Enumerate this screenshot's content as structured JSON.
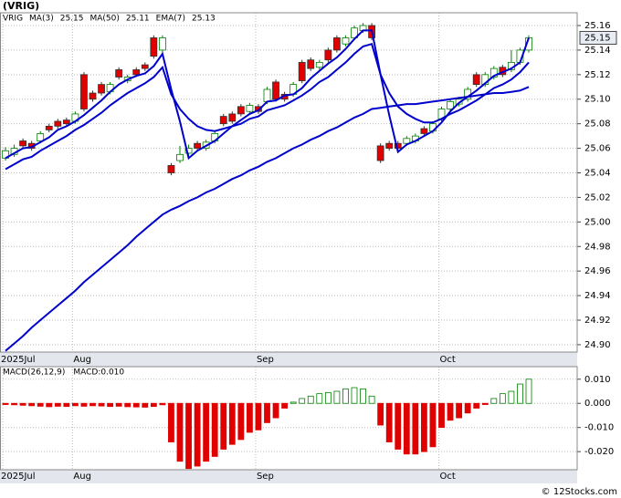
{
  "title": "(VRIG)",
  "ticker": "VRIG",
  "footer": "© 12Stocks.com",
  "chart_data": [
    {
      "type": "candlestick",
      "categories": [
        "2025Jul",
        null,
        null,
        null,
        null,
        null,
        null,
        null,
        "Aug",
        null,
        null,
        null,
        null,
        null,
        null,
        null,
        null,
        null,
        null,
        null,
        null,
        null,
        null,
        null,
        null,
        null,
        null,
        null,
        null,
        "Sep",
        null,
        null,
        null,
        null,
        null,
        null,
        null,
        null,
        null,
        null,
        null,
        null,
        null,
        null,
        null,
        null,
        null,
        null,
        null,
        null,
        "Oct",
        null,
        null,
        null,
        null,
        null,
        null,
        null,
        null,
        null,
        null
      ],
      "open": [
        25.052,
        25.055,
        25.066,
        25.064,
        25.066,
        25.078,
        25.082,
        25.083,
        25.082,
        25.12,
        25.105,
        25.112,
        25.106,
        25.124,
        25.115,
        25.124,
        25.128,
        25.15,
        25.14,
        25.046,
        25.05,
        25.056,
        25.064,
        25.06,
        25.066,
        25.086,
        25.088,
        25.094,
        25.09,
        25.094,
        25.098,
        25.114,
        25.104,
        25.104,
        25.13,
        25.132,
        25.126,
        25.14,
        25.15,
        25.145,
        25.15,
        25.156,
        25.16,
        25.062,
        25.064,
        25.064,
        25.064,
        25.066,
        25.076,
        25.074,
        25.084,
        25.092,
        25.096,
        25.1,
        25.12,
        25.112,
        25.118,
        25.126,
        25.124,
        25.13,
        25.14
      ],
      "high": [
        25.061,
        25.063,
        25.068,
        25.066,
        25.074,
        25.08,
        25.084,
        25.085,
        25.09,
        25.122,
        25.107,
        25.114,
        25.114,
        25.126,
        25.12,
        25.126,
        25.13,
        25.152,
        25.152,
        25.048,
        25.062,
        25.063,
        25.066,
        25.067,
        25.074,
        25.088,
        25.09,
        25.096,
        25.097,
        25.096,
        25.11,
        25.116,
        25.106,
        25.114,
        25.132,
        25.134,
        25.132,
        25.142,
        25.152,
        25.152,
        25.16,
        25.162,
        25.162,
        25.064,
        25.066,
        25.066,
        25.07,
        25.072,
        25.078,
        25.082,
        25.094,
        25.1,
        25.102,
        25.11,
        25.122,
        25.122,
        25.127,
        25.128,
        25.14,
        25.142,
        25.152
      ],
      "low": [
        25.05,
        25.053,
        25.06,
        25.058,
        25.064,
        25.073,
        25.076,
        25.078,
        25.08,
        25.09,
        25.098,
        25.103,
        25.104,
        25.116,
        25.113,
        25.118,
        25.123,
        25.133,
        25.138,
        25.038,
        25.048,
        25.054,
        25.058,
        25.058,
        25.064,
        25.078,
        25.08,
        25.086,
        25.088,
        25.088,
        25.096,
        25.098,
        25.098,
        25.102,
        25.113,
        25.123,
        25.124,
        25.13,
        25.138,
        25.143,
        25.148,
        25.154,
        25.148,
        25.048,
        25.058,
        25.058,
        25.062,
        25.064,
        25.07,
        25.072,
        25.082,
        25.09,
        25.094,
        25.098,
        25.11,
        25.11,
        25.116,
        25.118,
        25.122,
        25.128,
        25.138
      ],
      "close": [
        25.058,
        25.06,
        25.062,
        25.06,
        25.072,
        25.075,
        25.078,
        25.08,
        25.088,
        25.092,
        25.1,
        25.105,
        25.112,
        25.118,
        25.118,
        25.12,
        25.125,
        25.135,
        25.15,
        25.04,
        25.055,
        25.06,
        25.06,
        25.065,
        25.072,
        25.08,
        25.082,
        25.088,
        25.095,
        25.09,
        25.108,
        25.1,
        25.1,
        25.112,
        25.115,
        25.125,
        25.13,
        25.132,
        25.14,
        25.15,
        25.158,
        25.16,
        25.15,
        25.05,
        25.06,
        25.06,
        25.068,
        25.07,
        25.072,
        25.08,
        25.092,
        25.098,
        25.1,
        25.108,
        25.112,
        25.12,
        25.125,
        25.12,
        25.13,
        25.14,
        25.15
      ],
      "up_color": "#008000",
      "down_color": "#e00000",
      "series": [
        {
          "name": "MA(3)",
          "color": "#0000cc",
          "values": [
            25.052,
            25.056,
            25.06,
            25.061,
            25.065,
            25.069,
            25.075,
            25.078,
            25.082,
            25.087,
            25.093,
            25.099,
            25.106,
            25.112,
            25.116,
            25.119,
            25.121,
            25.127,
            25.137,
            25.108,
            25.082,
            25.052,
            25.058,
            25.062,
            25.066,
            25.072,
            25.078,
            25.083,
            25.088,
            25.091,
            25.098,
            25.099,
            25.103,
            25.104,
            25.109,
            25.117,
            25.123,
            25.129,
            25.134,
            25.141,
            25.149,
            25.156,
            25.156,
            25.12,
            25.087,
            25.057,
            25.063,
            25.066,
            25.07,
            25.074,
            25.081,
            25.09,
            25.097,
            25.102,
            25.107,
            25.113,
            25.119,
            25.122,
            25.125,
            25.13,
            25.15
          ]
        },
        {
          "name": "MA(50)",
          "color": "#0000cc",
          "values": [
            24.895,
            24.901,
            24.907,
            24.914,
            24.92,
            24.926,
            24.932,
            24.938,
            24.944,
            24.951,
            24.957,
            24.963,
            24.969,
            24.975,
            24.981,
            24.988,
            24.994,
            25.0,
            25.006,
            25.01,
            25.013,
            25.017,
            25.02,
            25.024,
            25.027,
            25.031,
            25.035,
            25.038,
            25.042,
            25.045,
            25.049,
            25.052,
            25.056,
            25.06,
            25.063,
            25.067,
            25.07,
            25.074,
            25.077,
            25.081,
            25.085,
            25.088,
            25.092,
            25.093,
            25.094,
            25.095,
            25.096,
            25.096,
            25.097,
            25.098,
            25.099,
            25.1,
            25.101,
            25.102,
            25.103,
            25.104,
            25.105,
            25.105,
            25.106,
            25.107,
            25.11
          ]
        },
        {
          "name": "EMA(7)",
          "color": "#0000cc",
          "values": [
            25.043,
            25.047,
            25.051,
            25.053,
            25.058,
            25.062,
            25.066,
            25.07,
            25.075,
            25.079,
            25.084,
            25.089,
            25.095,
            25.1,
            25.105,
            25.109,
            25.113,
            25.118,
            25.126,
            25.104,
            25.092,
            25.084,
            25.078,
            25.075,
            25.074,
            25.076,
            25.078,
            25.08,
            25.084,
            25.086,
            25.091,
            25.093,
            25.095,
            25.099,
            25.103,
            25.108,
            25.114,
            25.118,
            25.124,
            25.13,
            25.137,
            25.143,
            25.145,
            25.12,
            25.105,
            25.094,
            25.088,
            25.084,
            25.081,
            25.081,
            25.084,
            25.088,
            25.091,
            25.095,
            25.099,
            25.104,
            25.109,
            25.112,
            25.116,
            25.122,
            25.13
          ]
        }
      ],
      "ylim": [
        24.894,
        25.1704
      ],
      "yticks": [
        {
          "value": 24.9,
          "label": "24.90"
        },
        24.92,
        24.94,
        24.96,
        24.98,
        {
          "value": 25.0,
          "label": "25.00"
        },
        25.02,
        25.04,
        25.06,
        25.08,
        {
          "value": 25.1,
          "label": "25.10"
        },
        25.12,
        25.14,
        25.16
      ],
      "grid": true
    },
    {
      "type": "histogram-bar",
      "label": "MACD(26,12,9)",
      "value_label": "MACD:0.010",
      "categories": [
        "2025Jul",
        null,
        null,
        null,
        null,
        null,
        null,
        null,
        "Aug",
        null,
        null,
        null,
        null,
        null,
        null,
        null,
        null,
        null,
        null,
        null,
        null,
        null,
        null,
        null,
        null,
        null,
        null,
        null,
        null,
        "Sep",
        null,
        null,
        null,
        null,
        null,
        null,
        null,
        null,
        null,
        null,
        null,
        null,
        null,
        null,
        null,
        null,
        null,
        null,
        null,
        null,
        "Oct",
        null,
        null,
        null,
        null,
        null,
        null,
        null,
        null,
        null,
        null
      ],
      "values": [
        -0.0005,
        -0.0006,
        -0.0008,
        -0.001,
        -0.0012,
        -0.0014,
        -0.0012,
        -0.0013,
        -0.001,
        -0.0012,
        -0.001,
        -0.0011,
        -0.0013,
        -0.0012,
        -0.0014,
        -0.0015,
        -0.0016,
        -0.0013,
        -0.0006,
        -0.016,
        -0.024,
        -0.027,
        -0.026,
        -0.024,
        -0.022,
        -0.019,
        -0.017,
        -0.015,
        -0.012,
        -0.011,
        -0.008,
        -0.006,
        -0.002,
        0.0005,
        0.002,
        0.003,
        0.004,
        0.0045,
        0.005,
        0.006,
        0.0065,
        0.006,
        0.003,
        -0.009,
        -0.016,
        -0.019,
        -0.021,
        -0.021,
        -0.02,
        -0.018,
        -0.01,
        -0.007,
        -0.006,
        -0.004,
        -0.002,
        -0.0005,
        0.002,
        0.004,
        0.005,
        0.008,
        0.01
      ],
      "up_color": "#008000",
      "down_color": "#e00000",
      "ylim": [
        -0.0275,
        0.0152
      ],
      "yticks": [
        {
          "value": 0.01,
          "label": "0.010"
        },
        {
          "value": 0,
          "label": "0.000"
        },
        {
          "value": -0.01,
          "label": "-0.010"
        },
        {
          "value": -0.02,
          "label": "-0.020"
        }
      ],
      "grid": true
    }
  ]
}
